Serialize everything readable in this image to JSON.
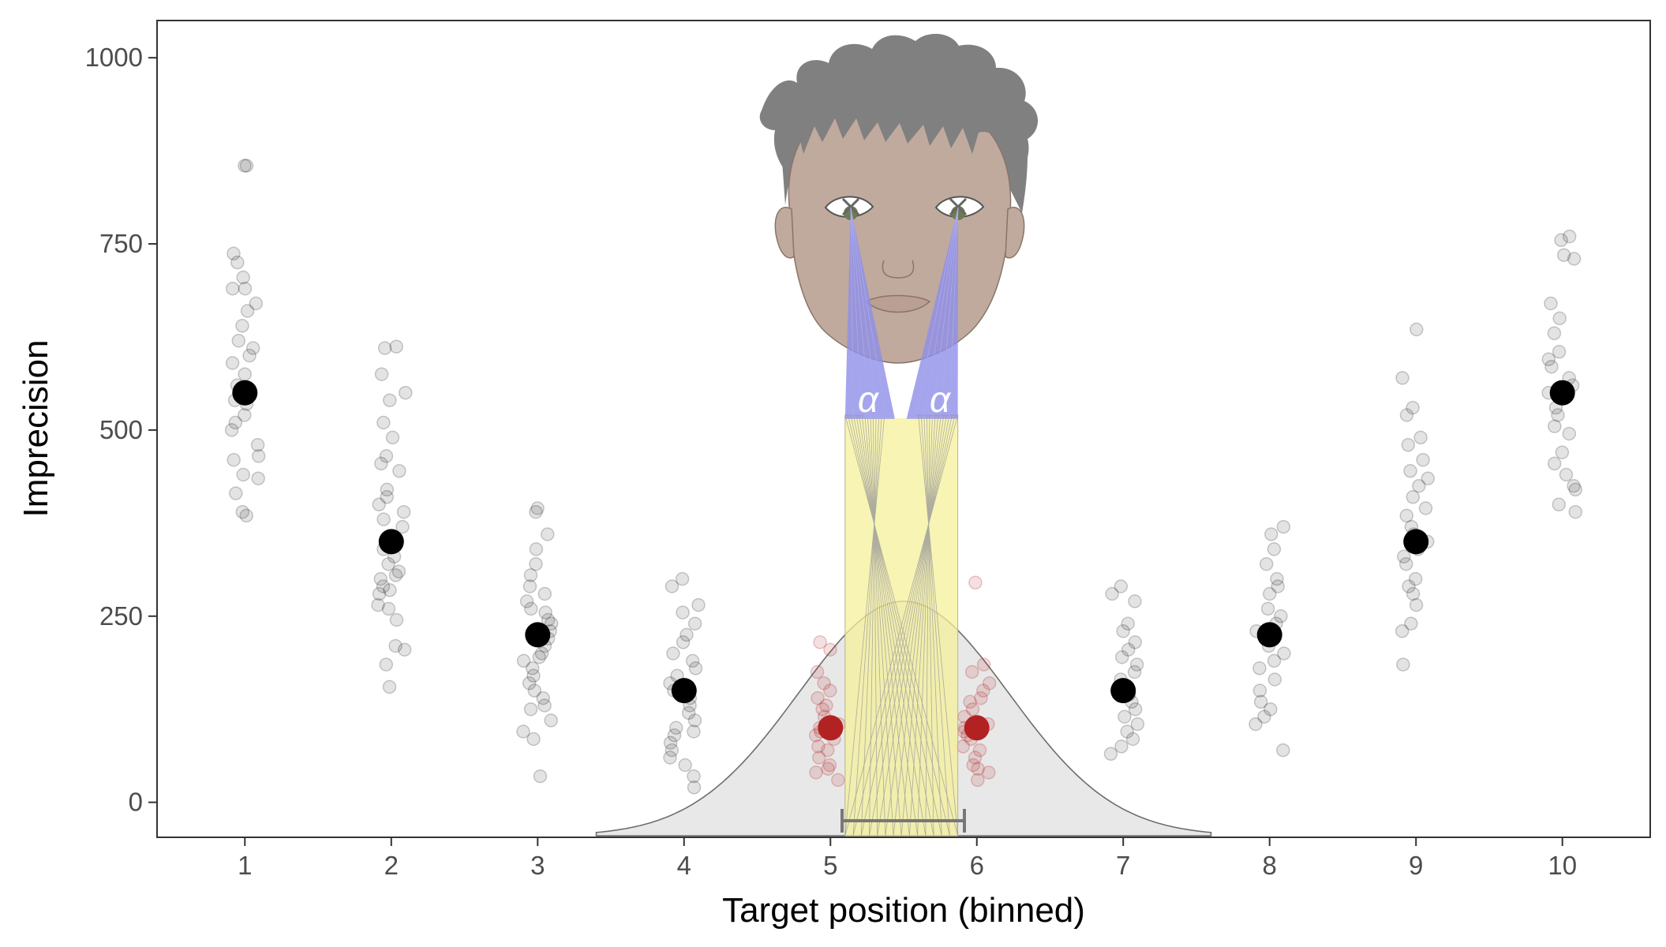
{
  "chart_data": {
    "type": "scatter",
    "xlabel": "Target position (binned)",
    "ylabel": "Imprecision",
    "x_categories": [
      1,
      2,
      3,
      4,
      5,
      6,
      7,
      8,
      9,
      10
    ],
    "xlim": [
      0.4,
      10.6
    ],
    "ylim": [
      -47,
      1050
    ],
    "yticks": [
      0,
      250,
      500,
      750,
      1000
    ],
    "grid": false,
    "legend": "none",
    "angle_label": "α",
    "colors": {
      "points": "#000000",
      "highlight": "#b22222",
      "distribution": "#e8e8e8",
      "fovea_rays": "#8f8fe8",
      "projection": "#f5f09a",
      "face": "#c0aa9e",
      "hair": "#808080"
    },
    "means": [
      {
        "x": 1,
        "y": 550
      },
      {
        "x": 2,
        "y": 350
      },
      {
        "x": 3,
        "y": 225
      },
      {
        "x": 4,
        "y": 150
      },
      {
        "x": 5,
        "y": 100,
        "highlight": true
      },
      {
        "x": 6,
        "y": 100,
        "highlight": true
      },
      {
        "x": 7,
        "y": 150
      },
      {
        "x": 8,
        "y": 225
      },
      {
        "x": 9,
        "y": 350
      },
      {
        "x": 10,
        "y": 550
      }
    ],
    "raw": [
      [
        855,
        855,
        737,
        725,
        705,
        690,
        690,
        670,
        660,
        640,
        620,
        610,
        600,
        590,
        575,
        560,
        548,
        540,
        535,
        520,
        510,
        500,
        480,
        465,
        460,
        440,
        435,
        415,
        390,
        385
      ],
      [
        612,
        610,
        575,
        550,
        540,
        510,
        490,
        465,
        455,
        445,
        420,
        410,
        400,
        390,
        380,
        370,
        350,
        340,
        330,
        320,
        310,
        305,
        300,
        290,
        285,
        280,
        265,
        260,
        245,
        210,
        205,
        185,
        155
      ],
      [
        395,
        390,
        360,
        340,
        320,
        305,
        290,
        280,
        270,
        260,
        255,
        245,
        240,
        230,
        220,
        210,
        200,
        195,
        190,
        180,
        170,
        160,
        150,
        140,
        130,
        125,
        110,
        95,
        85,
        35
      ],
      [
        300,
        290,
        265,
        255,
        240,
        225,
        215,
        200,
        190,
        180,
        170,
        160,
        150,
        140,
        130,
        120,
        110,
        100,
        95,
        90,
        80,
        70,
        60,
        50,
        35,
        20
      ],
      [
        215,
        205,
        175,
        160,
        150,
        140,
        130,
        125,
        115,
        105,
        100,
        95,
        90,
        85,
        75,
        70,
        60,
        50,
        45,
        40,
        30
      ],
      [
        295,
        185,
        175,
        160,
        150,
        140,
        135,
        125,
        115,
        105,
        100,
        95,
        90,
        85,
        75,
        70,
        60,
        50,
        45,
        40,
        30
      ],
      [
        290,
        280,
        270,
        240,
        230,
        215,
        205,
        195,
        185,
        175,
        165,
        155,
        145,
        135,
        125,
        115,
        105,
        95,
        85,
        75,
        65
      ],
      [
        370,
        360,
        340,
        320,
        300,
        290,
        280,
        260,
        250,
        240,
        230,
        220,
        210,
        200,
        190,
        180,
        165,
        150,
        135,
        125,
        115,
        105,
        70
      ],
      [
        635,
        570,
        530,
        520,
        490,
        480,
        460,
        445,
        435,
        425,
        410,
        395,
        385,
        370,
        360,
        350,
        340,
        330,
        320,
        300,
        290,
        280,
        265,
        240,
        230,
        185
      ],
      [
        760,
        755,
        735,
        730,
        670,
        650,
        630,
        605,
        595,
        585,
        570,
        560,
        550,
        545,
        530,
        520,
        505,
        495,
        470,
        455,
        440,
        425,
        420,
        400,
        390
      ]
    ]
  }
}
